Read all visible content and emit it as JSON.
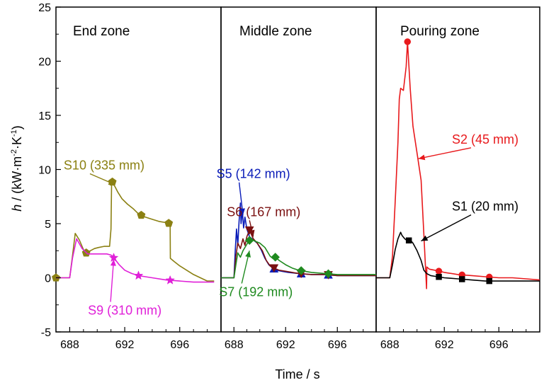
{
  "chart_data": {
    "type": "line",
    "xlabel": "Time / s",
    "ylabel_parts": {
      "symbol": "h",
      "pre": " / (kW·m",
      "exp1": "-2",
      "mid": "·K",
      "exp2": "-1",
      "post": ")"
    },
    "ylim": [
      -5,
      25
    ],
    "yticks": [
      -5,
      0,
      5,
      10,
      15,
      20,
      25
    ],
    "xlim": [
      687,
      699
    ],
    "xticks": [
      688,
      692,
      696
    ],
    "grid": false,
    "colors": {
      "S1": "#000000",
      "S2": "#e8191c",
      "S5": "#0a1cb8",
      "S6": "#7a1010",
      "S7": "#1f8a1f",
      "S9": "#e020d8",
      "S10": "#8b8012"
    },
    "panels": [
      {
        "title": "End zone",
        "annotations": [
          {
            "series": "S10",
            "text": "S10 (335 mm)",
            "x": 690.5,
            "y": 10.0,
            "ax": 691.3,
            "ay": 8.6,
            "color": "#8b8012"
          },
          {
            "series": "S9",
            "text": "S9 (310 mm)",
            "x": 692.0,
            "y": -3.4,
            "ax": 691.2,
            "ay": 1.7,
            "color": "#e020d8"
          }
        ],
        "series": [
          {
            "name": "S10",
            "marker": "pentagon",
            "markers_x": [
              687.0,
              689.2,
              691.1,
              693.2,
              695.2
            ],
            "x": [
              687.0,
              688.0,
              688.2,
              688.4,
              688.7,
              689.0,
              689.2,
              689.5,
              689.8,
              690.1,
              690.5,
              690.9,
              691.0,
              691.05,
              691.15,
              691.3,
              691.5,
              691.8,
              692.2,
              692.6,
              693.0,
              693.5,
              694.0,
              694.5,
              695.0,
              695.3,
              695.32,
              695.6,
              696.0,
              696.5,
              697.0,
              697.5,
              698.0,
              698.5
            ],
            "y": [
              0.0,
              0.0,
              2.0,
              4.1,
              3.5,
              2.6,
              2.3,
              2.5,
              2.7,
              2.8,
              2.9,
              2.9,
              4.5,
              9.0,
              8.7,
              8.4,
              7.9,
              7.3,
              6.8,
              6.4,
              5.9,
              5.6,
              5.4,
              5.2,
              5.1,
              5.0,
              1.8,
              1.5,
              1.1,
              0.7,
              0.3,
              0.0,
              -0.3,
              -0.3
            ]
          },
          {
            "name": "S9",
            "marker": "star",
            "markers_x": [
              691.2,
              693.0,
              695.3
            ],
            "x": [
              687.0,
              688.0,
              688.2,
              688.5,
              688.9,
              689.3,
              689.7,
              690.2,
              690.7,
              691.0,
              691.1,
              691.3,
              691.6,
              692.0,
              692.5,
              693.0,
              693.5,
              694.0,
              695.0,
              696.0,
              697.0,
              698.0,
              698.5
            ],
            "y": [
              0.0,
              0.0,
              1.8,
              3.6,
              2.7,
              2.2,
              2.2,
              2.2,
              2.2,
              2.1,
              2.0,
              1.7,
              1.2,
              0.7,
              0.4,
              0.2,
              0.1,
              0.0,
              -0.2,
              -0.3,
              -0.4,
              -0.4,
              -0.4
            ]
          }
        ]
      },
      {
        "title": "Middle zone",
        "annotations": [
          {
            "series": "S5",
            "text": "S5 (142 mm)",
            "x": 689.5,
            "y": 9.2,
            "ax": 688.7,
            "ay": 5.8,
            "color": "#0a1cb8"
          },
          {
            "series": "S6",
            "text": "S6 (167 mm)",
            "x": 690.3,
            "y": 5.7,
            "ax": 689.5,
            "ay": 3.8,
            "color": "#7a1010"
          },
          {
            "series": "S7",
            "text": "S7 (192 mm)",
            "x": 689.7,
            "y": -1.7,
            "ax": 689.2,
            "ay": 2.5,
            "color": "#1f8a1f"
          }
        ],
        "series": [
          {
            "name": "S5",
            "marker": "triangle-up",
            "markers_x": [
              691.1,
              693.2,
              695.3
            ],
            "x": [
              687.0,
              688.0,
              688.1,
              688.2,
              688.3,
              688.4,
              688.5,
              688.55,
              688.65,
              688.75,
              688.85,
              689.0,
              689.2,
              689.5,
              689.8,
              690.1,
              690.4,
              690.7,
              691.0,
              691.3,
              691.7,
              692.2,
              693.0,
              694.0,
              695.0,
              696.0,
              697.0,
              698.0,
              699.0
            ],
            "y": [
              0.0,
              0.0,
              2.5,
              4.5,
              3.0,
              5.2,
              6.9,
              5.0,
              6.2,
              4.6,
              5.6,
              4.5,
              3.8,
              3.5,
              3.2,
              2.6,
              1.8,
              1.2,
              0.9,
              0.7,
              0.6,
              0.5,
              0.4,
              0.3,
              0.3,
              0.2,
              0.2,
              0.2,
              0.2
            ]
          },
          {
            "name": "S6",
            "marker": "triangle-down",
            "markers_x": [
              689.2,
              691.1,
              693.2,
              695.3
            ],
            "x": [
              687.0,
              688.0,
              688.15,
              688.3,
              688.5,
              688.7,
              688.85,
              689.0,
              689.2,
              689.5,
              689.8,
              690.2,
              690.5,
              690.8,
              691.1,
              691.5,
              692.0,
              693.0,
              694.0,
              695.0,
              696.0,
              697.0,
              698.0,
              699.0
            ],
            "y": [
              0.0,
              0.0,
              2.0,
              3.2,
              2.7,
              3.6,
              3.0,
              3.8,
              4.4,
              3.6,
              3.2,
              2.5,
              1.6,
              1.1,
              0.9,
              0.7,
              0.6,
              0.4,
              0.3,
              0.3,
              0.2,
              0.2,
              0.2,
              0.2
            ]
          },
          {
            "name": "S7",
            "marker": "diamond",
            "markers_x": [
              689.2,
              691.2,
              693.2,
              695.3
            ],
            "x": [
              687.0,
              688.0,
              688.15,
              688.3,
              688.5,
              688.7,
              688.9,
              689.1,
              689.3,
              689.6,
              690.0,
              690.4,
              690.8,
              691.0,
              691.2,
              691.5,
              692.0,
              692.5,
              693.0,
              694.0,
              695.0,
              696.0,
              697.0,
              698.0,
              699.0
            ],
            "y": [
              0.0,
              0.0,
              1.2,
              2.3,
              1.9,
              2.5,
              2.9,
              3.3,
              3.6,
              3.4,
              3.2,
              2.8,
              2.0,
              1.8,
              1.9,
              1.6,
              1.2,
              0.9,
              0.7,
              0.5,
              0.4,
              0.3,
              0.3,
              0.3,
              0.3
            ]
          }
        ]
      },
      {
        "title": "Pouring zone",
        "annotations": [
          {
            "series": "S2",
            "text": "S2 (45 mm)",
            "x": 695.0,
            "y": 12.4,
            "ax": 690.1,
            "ay": 11.0,
            "color": "#e8191c"
          },
          {
            "series": "S1",
            "text": "S1 (20 mm)",
            "x": 695.0,
            "y": 6.2,
            "ax": 690.3,
            "ay": 3.4,
            "color": "#000000"
          }
        ],
        "series": [
          {
            "name": "S2",
            "marker": "circle",
            "markers_x": [
              689.3,
              691.6,
              693.3,
              695.3
            ],
            "x": [
              687.0,
              688.0,
              688.2,
              688.4,
              688.6,
              688.7,
              688.8,
              689.0,
              689.2,
              689.3,
              689.5,
              689.7,
              690.0,
              690.3,
              690.5,
              690.7,
              690.72,
              690.9,
              691.3,
              692.0,
              693.0,
              694.0,
              695.0,
              696.0,
              697.0,
              698.0,
              699.0
            ],
            "y": [
              0.0,
              0.0,
              2.0,
              7.0,
              12.5,
              16.5,
              17.5,
              17.3,
              19.5,
              21.8,
              17.5,
              14.0,
              11.5,
              9.0,
              4.0,
              -1.0,
              1.0,
              0.8,
              0.7,
              0.5,
              0.3,
              0.2,
              0.1,
              0.0,
              0.0,
              -0.1,
              -0.2
            ]
          },
          {
            "name": "S1",
            "marker": "square",
            "markers_x": [
              689.4,
              691.6,
              693.3,
              695.3
            ],
            "x": [
              687.0,
              688.0,
              688.2,
              688.4,
              688.6,
              688.8,
              688.9,
              689.1,
              689.3,
              689.5,
              689.7,
              690.0,
              690.3,
              690.5,
              690.7,
              691.0,
              691.5,
              692.0,
              693.0,
              694.0,
              695.0,
              696.0,
              697.0,
              698.0,
              699.0
            ],
            "y": [
              0.0,
              0.0,
              1.2,
              2.6,
              3.6,
              4.2,
              3.9,
              3.6,
              3.4,
              3.5,
              3.2,
              2.5,
              1.6,
              0.7,
              0.4,
              0.2,
              0.1,
              0.0,
              -0.1,
              -0.2,
              -0.3,
              -0.3,
              -0.3,
              -0.3,
              -0.3
            ]
          }
        ]
      }
    ]
  }
}
